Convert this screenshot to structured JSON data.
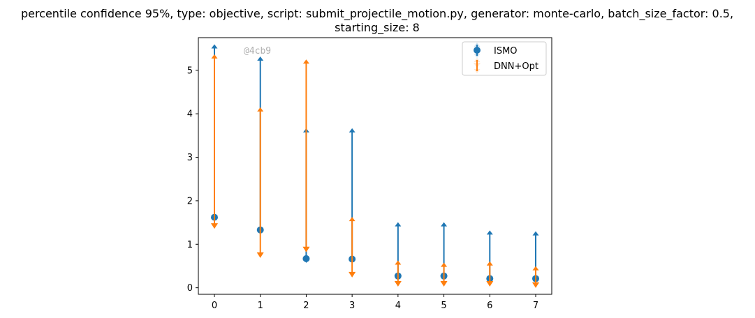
{
  "chart_data": {
    "type": "errorbar",
    "title_line1": "percentile confidence 95%, type: objective, script: submit_projectile_motion.py, generator: monte-carlo, batch_size_factor: 0.5,",
    "title_line2": "starting_size: 8",
    "xlabel": "",
    "ylabel": "",
    "x": [
      0,
      1,
      2,
      3,
      4,
      5,
      6,
      7
    ],
    "x_ticks": [
      "0",
      "1",
      "2",
      "3",
      "4",
      "5",
      "6",
      "7"
    ],
    "y_ticks": [
      "0",
      "1",
      "2",
      "3",
      "4",
      "5"
    ],
    "xlim": [
      -0.35,
      7.35
    ],
    "ylim": [
      -0.15,
      5.75
    ],
    "grid": false,
    "legend_position": "top-right",
    "watermark": "@4cb9",
    "series": [
      {
        "name": "ISMO",
        "color": "#1f77b4",
        "marker": "circle",
        "values": [
          1.62,
          1.33,
          0.67,
          0.66,
          0.27,
          0.27,
          0.21,
          0.21
        ],
        "lower": [
          1.62,
          1.3,
          0.62,
          0.62,
          0.27,
          0.27,
          0.21,
          0.21
        ],
        "upper": [
          5.55,
          5.27,
          3.62,
          3.62,
          1.46,
          1.46,
          1.27,
          1.25
        ]
      },
      {
        "name": "DNN+Opt",
        "color": "#ff7f0e",
        "marker": "triangle-down",
        "values": [
          1.42,
          0.75,
          0.88,
          0.3,
          0.09,
          0.09,
          0.09,
          0.06
        ],
        "lower": [
          1.42,
          0.75,
          0.88,
          0.3,
          0.09,
          0.09,
          0.09,
          0.06
        ],
        "upper": [
          5.32,
          4.1,
          5.2,
          1.58,
          0.58,
          0.53,
          0.56,
          0.45
        ]
      }
    ]
  }
}
